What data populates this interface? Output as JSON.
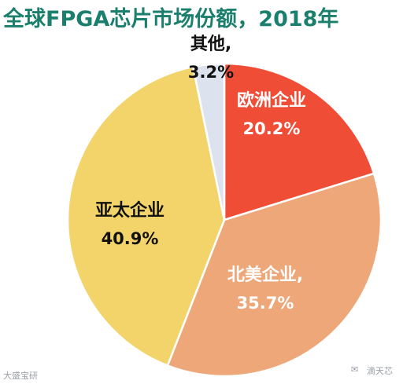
{
  "chart_data": {
    "type": "pie",
    "title": "全球FPGA芯片市场份额，2018年",
    "slices": [
      {
        "name": "欧洲企业",
        "label": "欧洲企业",
        "value": 20.2,
        "value_label": "20.2%",
        "color": "#f04d37",
        "text_color": "#ffffff"
      },
      {
        "name": "北美企业",
        "label": "北美企业,",
        "value": 35.7,
        "value_label": "35.7%",
        "color": "#eda779",
        "text_color": "#ffffff"
      },
      {
        "name": "亚太企业",
        "label": "亚太企业",
        "value": 40.9,
        "value_label": "40.9%",
        "color": "#f2d46b",
        "text_color": "#111111"
      },
      {
        "name": "其他",
        "label": "其他,",
        "value": 3.2,
        "value_label": "3.2%",
        "color": "#dce3ef",
        "text_color": "#111111"
      }
    ]
  },
  "watermarks": {
    "left": "大盛宝研",
    "right": "滴天芯"
  }
}
